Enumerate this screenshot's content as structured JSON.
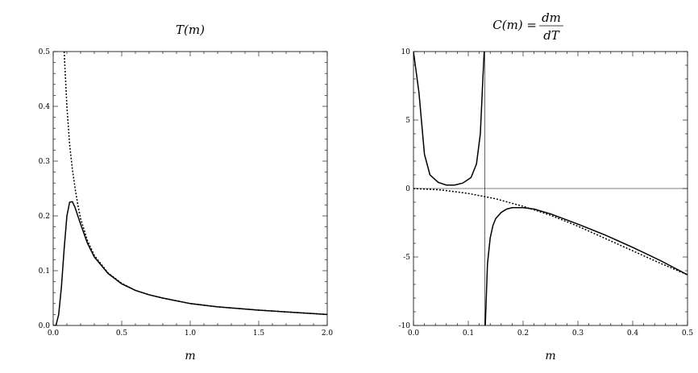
{
  "chart_data": [
    {
      "type": "line",
      "title": "T(m)",
      "xlabel": "m",
      "xlim": [
        0,
        2.0
      ],
      "ylim": [
        0,
        0.5
      ],
      "xticks": [
        "0.0",
        "0.5",
        "1.0",
        "1.5",
        "2.0"
      ],
      "yticks": [
        "0.0",
        "0.1",
        "0.2",
        "0.3",
        "0.4",
        "0.5"
      ],
      "series": [
        {
          "style": "solid",
          "x": [
            0.0,
            0.02,
            0.04,
            0.06,
            0.08,
            0.1,
            0.12,
            0.14,
            0.16,
            0.18,
            0.2,
            0.25,
            0.3,
            0.4,
            0.5,
            0.6,
            0.7,
            0.8,
            1.0,
            1.2,
            1.5,
            2.0
          ],
          "y": [
            0.0,
            0.0,
            0.02,
            0.07,
            0.14,
            0.2,
            0.225,
            0.226,
            0.215,
            0.2,
            0.185,
            0.15,
            0.125,
            0.095,
            0.076,
            0.064,
            0.056,
            0.05,
            0.04,
            0.034,
            0.028,
            0.02
          ]
        },
        {
          "style": "dashed",
          "x": [
            0.08,
            0.1,
            0.12,
            0.14,
            0.16,
            0.18,
            0.2,
            0.25,
            0.3,
            0.4,
            0.5,
            0.6,
            0.7,
            0.8,
            1.0,
            1.2,
            1.5,
            2.0
          ],
          "y": [
            0.5,
            0.4,
            0.33,
            0.285,
            0.25,
            0.22,
            0.195,
            0.155,
            0.128,
            0.096,
            0.077,
            0.064,
            0.056,
            0.05,
            0.04,
            0.034,
            0.028,
            0.02
          ]
        }
      ]
    },
    {
      "type": "line",
      "title": "C(m) = dm/dT",
      "title_parts": {
        "left": "C(m) =",
        "num": "dm",
        "den": "dT"
      },
      "xlabel": "m",
      "xlim": [
        0,
        0.5
      ],
      "ylim": [
        -10,
        10
      ],
      "xticks": [
        "0.0",
        "0.1",
        "0.2",
        "0.3",
        "0.4",
        "0.5"
      ],
      "yticks": [
        "-10",
        "-5",
        "0",
        "5",
        "10"
      ],
      "series": [
        {
          "style": "solid",
          "x": [
            0.0,
            0.01,
            0.02,
            0.03,
            0.045,
            0.06,
            0.075,
            0.09,
            0.105,
            0.115,
            0.122,
            0.126,
            0.129
          ],
          "y": [
            10,
            7.0,
            2.5,
            1.0,
            0.45,
            0.25,
            0.25,
            0.4,
            0.8,
            1.8,
            4.0,
            7.5,
            10
          ]
        },
        {
          "style": "solid",
          "x": [
            0.131,
            0.135,
            0.14,
            0.145,
            0.15,
            0.16,
            0.17,
            0.18,
            0.2,
            0.22,
            0.25,
            0.3,
            0.35,
            0.4,
            0.45,
            0.5
          ],
          "y": [
            -10,
            -5.5,
            -3.6,
            -2.7,
            -2.2,
            -1.75,
            -1.5,
            -1.4,
            -1.4,
            -1.5,
            -1.85,
            -2.6,
            -3.4,
            -4.3,
            -5.25,
            -6.3
          ]
        },
        {
          "style": "dashed",
          "x": [
            0.0,
            0.05,
            0.1,
            0.15,
            0.2,
            0.25,
            0.3,
            0.35,
            0.4,
            0.45,
            0.5
          ],
          "y": [
            0.0,
            -0.1,
            -0.36,
            -0.75,
            -1.3,
            -1.95,
            -2.75,
            -3.65,
            -4.55,
            -5.45,
            -6.3
          ]
        }
      ],
      "vertical_line_x": 0.13,
      "zero_line": true
    }
  ]
}
